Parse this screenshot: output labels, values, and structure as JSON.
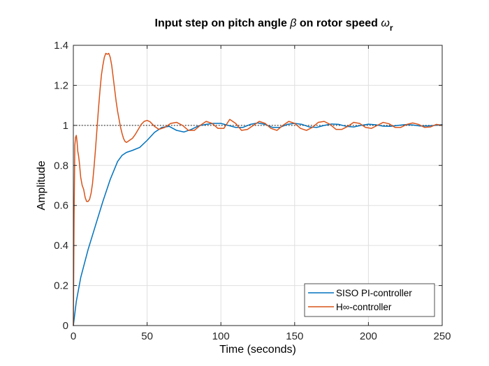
{
  "chart_data": {
    "type": "line",
    "title": {
      "prefix": "Input step on pitch angle ",
      "beta_symbol": "β",
      "middle": " on rotor speed ",
      "omega_symbol": "ω",
      "subscript": "r"
    },
    "xlabel": "Time (seconds)",
    "ylabel": "Amplitude",
    "xlim": [
      0,
      250
    ],
    "ylim": [
      0,
      1.4
    ],
    "x_ticks": [
      0,
      50,
      100,
      150,
      200,
      250
    ],
    "y_ticks": [
      0,
      0.2,
      0.4,
      0.6,
      0.8,
      1,
      1.2,
      1.4
    ],
    "x_tick_labels": [
      "0",
      "50",
      "100",
      "150",
      "200",
      "250"
    ],
    "y_tick_labels": [
      "0",
      "0.2",
      "0.4",
      "0.6",
      "0.8",
      "1",
      "1.2",
      "1.4"
    ],
    "grid": true,
    "reference_line": {
      "y": 1,
      "style": "dotted",
      "color": "#000000"
    },
    "legend": {
      "position": "bottom-right",
      "entries": [
        {
          "label": "SISO PI-controller"
        },
        {
          "label_prefix": "H",
          "label_symbol": "∞",
          "label_suffix": "-controller"
        }
      ]
    },
    "series": [
      {
        "name": "SISO PI-controller",
        "color": "#0072BD",
        "x": [
          0,
          2,
          5,
          10,
          15,
          20,
          25,
          30,
          33,
          36,
          40,
          45,
          50,
          55,
          60,
          65,
          70,
          75,
          80,
          85,
          90,
          95,
          100,
          105,
          110,
          115,
          120,
          125,
          130,
          135,
          140,
          145,
          150,
          155,
          160,
          165,
          170,
          175,
          180,
          185,
          190,
          195,
          200,
          205,
          210,
          215,
          220,
          225,
          230,
          235,
          240,
          245,
          250
        ],
        "y": [
          0,
          0.12,
          0.24,
          0.38,
          0.5,
          0.62,
          0.73,
          0.82,
          0.85,
          0.865,
          0.875,
          0.89,
          0.925,
          0.965,
          0.99,
          0.995,
          0.975,
          0.967,
          0.98,
          0.998,
          1.005,
          1.01,
          1.01,
          1.0,
          0.99,
          0.99,
          1.005,
          1.012,
          1.005,
          0.99,
          0.99,
          1.005,
          1.01,
          1.005,
          0.992,
          0.99,
          1.0,
          1.007,
          1.005,
          0.995,
          0.992,
          1.0,
          1.006,
          1.003,
          0.996,
          0.995,
          1.0,
          1.004,
          1.002,
          0.997,
          0.997,
          1.0,
          1.004
        ]
      },
      {
        "name": "H∞-controller",
        "color": "#D95319",
        "x": [
          0,
          0.5,
          1,
          1.5,
          2,
          2.5,
          3,
          3.5,
          4,
          5,
          6,
          7,
          8,
          9,
          10,
          11,
          12,
          13,
          14,
          15,
          16,
          17,
          18,
          19,
          20,
          21,
          22,
          23,
          24,
          25,
          26,
          27,
          28,
          29,
          30,
          31,
          32,
          33,
          34,
          35,
          36,
          37,
          38,
          40,
          42,
          44,
          46,
          48,
          50,
          52,
          55,
          58,
          62,
          66,
          70,
          74,
          78,
          82,
          86,
          90,
          94,
          98,
          102,
          106,
          110,
          114,
          118,
          122,
          126,
          130,
          134,
          138,
          142,
          146,
          150,
          154,
          158,
          162,
          166,
          170,
          174,
          178,
          182,
          186,
          190,
          194,
          198,
          202,
          206,
          210,
          214,
          218,
          222,
          226,
          230,
          234,
          238,
          242,
          246,
          250
        ],
        "y": [
          0,
          0.55,
          0.9,
          0.94,
          0.95,
          0.92,
          0.87,
          0.85,
          0.82,
          0.74,
          0.7,
          0.68,
          0.64,
          0.62,
          0.62,
          0.63,
          0.66,
          0.71,
          0.79,
          0.88,
          0.98,
          1.08,
          1.17,
          1.25,
          1.3,
          1.34,
          1.36,
          1.355,
          1.36,
          1.34,
          1.3,
          1.24,
          1.18,
          1.12,
          1.07,
          1.03,
          0.99,
          0.96,
          0.935,
          0.92,
          0.915,
          0.92,
          0.925,
          0.935,
          0.955,
          0.98,
          1.005,
          1.02,
          1.025,
          1.018,
          0.995,
          0.98,
          0.99,
          1.01,
          1.015,
          1.0,
          0.975,
          0.975,
          1.0,
          1.02,
          1.01,
          0.985,
          0.985,
          1.03,
          1.01,
          0.975,
          0.98,
          1.0,
          1.02,
          1.01,
          0.985,
          0.975,
          1.0,
          1.02,
          1.01,
          0.985,
          0.975,
          0.99,
          1.015,
          1.02,
          1.005,
          0.98,
          0.98,
          0.995,
          1.015,
          1.01,
          0.99,
          0.985,
          1.0,
          1.015,
          1.008,
          0.99,
          0.99,
          1.005,
          1.012,
          1.005,
          0.99,
          0.992,
          1.005,
          1.0
        ]
      }
    ]
  }
}
